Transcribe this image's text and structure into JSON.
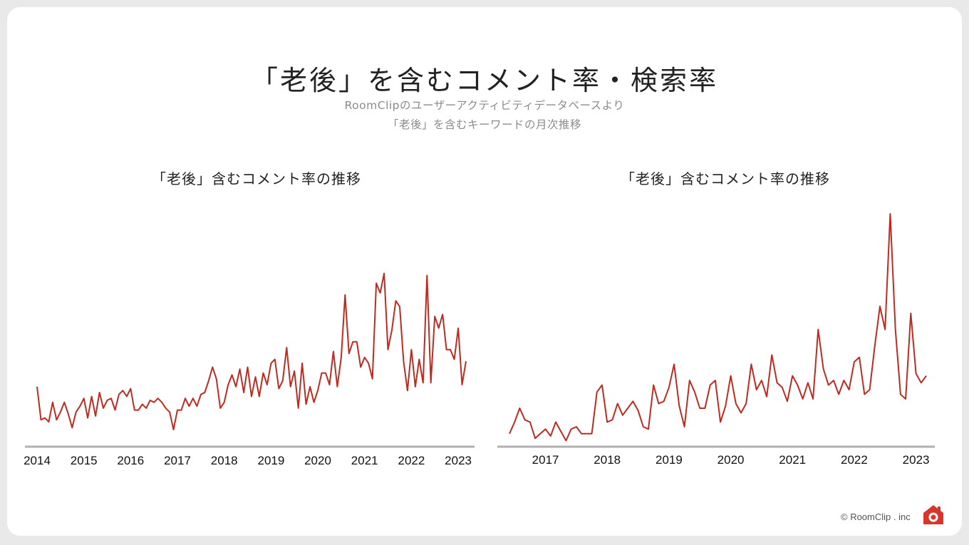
{
  "header": {
    "title": "「老後」を含むコメント率・検索率",
    "subtitle_line1": "RoomClipのユーザーアクティビティデータベースより",
    "subtitle_line2": "「老後」を含むキーワードの月次推移"
  },
  "footer": {
    "copyright": "© RoomClip . inc",
    "logo_icon": "roomclip-house-camera-icon"
  },
  "colors": {
    "line": "#c02a1f",
    "axis": "#b0b0b0",
    "logo": "#d9362b"
  },
  "chart_data": [
    {
      "type": "line",
      "title": "「老後」含むコメント率の推移",
      "xlabel": "",
      "ylabel": "",
      "y_axis_labels_shown": false,
      "grid": false,
      "x_ticks": [
        "2014",
        "2015",
        "2016",
        "2017",
        "2018",
        "2019",
        "2020",
        "2021",
        "2022",
        "2023"
      ],
      "x_start": "2014-01",
      "x_end": "2023-05",
      "ylim": [
        0,
        100
      ],
      "values": [
        26,
        9,
        10,
        8,
        18,
        9,
        13,
        18,
        12,
        5,
        13,
        16,
        20,
        10,
        21,
        11,
        23,
        15,
        19,
        20,
        14,
        22,
        24,
        21,
        25,
        14,
        14,
        17,
        15,
        19,
        18,
        20,
        18,
        15,
        13,
        4,
        14,
        14,
        20,
        16,
        20,
        16,
        22,
        23,
        29,
        36,
        30,
        15,
        18,
        27,
        32,
        26,
        35,
        23,
        36,
        21,
        31,
        21,
        33,
        27,
        38,
        40,
        25,
        29,
        46,
        26,
        34,
        15,
        38,
        17,
        26,
        18,
        24,
        33,
        33,
        27,
        44,
        26,
        41,
        73,
        43,
        49,
        49,
        36,
        41,
        38,
        30,
        79,
        74,
        84,
        45,
        55,
        70,
        67,
        39,
        24,
        45,
        26,
        40,
        28,
        83,
        28,
        62,
        56,
        63,
        45,
        45,
        40,
        56,
        27,
        39
      ]
    },
    {
      "type": "line",
      "title": "「老後」含むコメント率の推移",
      "xlabel": "",
      "ylabel": "",
      "y_axis_labels_shown": false,
      "grid": false,
      "x_ticks": [
        "2017",
        "2018",
        "2019",
        "2020",
        "2021",
        "2022",
        "2023"
      ],
      "x_start": "2016-06",
      "x_end": "2023-05",
      "ylim": [
        0,
        100
      ],
      "values": [
        5,
        10,
        16,
        11,
        10,
        3,
        5,
        7,
        4,
        10,
        6,
        2,
        7,
        8,
        5,
        5,
        5,
        23,
        26,
        10,
        11,
        18,
        13,
        16,
        19,
        15,
        8,
        7,
        26,
        18,
        19,
        25,
        35,
        17,
        8,
        28,
        23,
        16,
        16,
        26,
        28,
        10,
        17,
        30,
        18,
        14,
        18,
        35,
        24,
        28,
        21,
        39,
        27,
        25,
        19,
        30,
        26,
        20,
        27,
        20,
        50,
        33,
        26,
        28,
        22,
        28,
        24,
        36,
        38,
        22,
        24,
        43,
        60,
        50,
        100,
        50,
        22,
        20,
        57,
        31,
        27,
        30
      ]
    }
  ]
}
